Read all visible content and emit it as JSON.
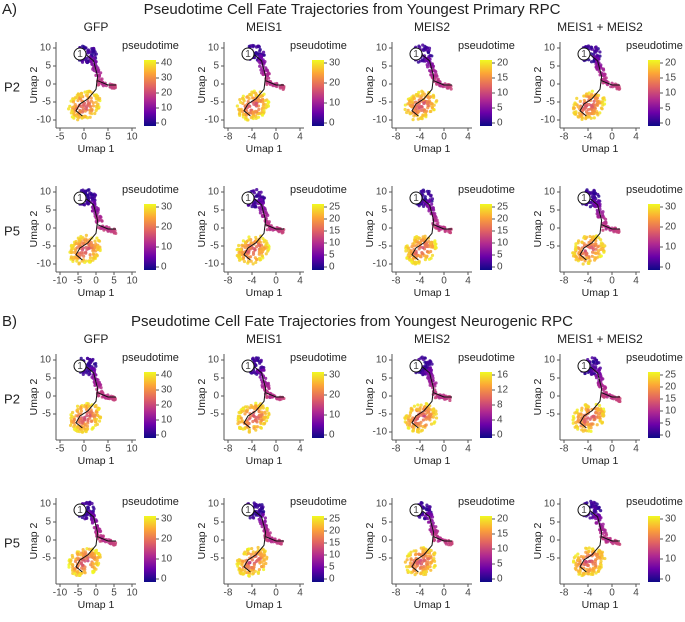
{
  "columns": [
    "GFP",
    "MEIS1",
    "MEIS2",
    "MEIS1 + MEIS2"
  ],
  "x_axis_label": "Umap 1",
  "y_axis_label": "Umap 2",
  "legend_title": "pseudotime",
  "root_label": "1",
  "sections": [
    {
      "label": "A)",
      "title": "Pseudotime Cell Fate Trajectories from Youngest Primary RPC",
      "rows": [
        {
          "label": "P2",
          "panels": [
            {
              "x_ticks": [
                -5,
                0,
                5,
                10
              ],
              "y_ticks": [
                10,
                5,
                0,
                -5,
                -10
              ],
              "colorbar_ticks": [
                40,
                30,
                20,
                10,
                0
              ]
            },
            {
              "x_ticks": [
                -8,
                -4,
                0,
                4
              ],
              "y_ticks": [
                10,
                5,
                0,
                -5,
                -10
              ],
              "colorbar_ticks": [
                30,
                20,
                10,
                0
              ]
            },
            {
              "x_ticks": [
                -8,
                -4,
                0,
                4
              ],
              "y_ticks": [
                10,
                5,
                0,
                -5,
                -10
              ],
              "colorbar_ticks": [
                20,
                15,
                10,
                5,
                0
              ]
            },
            {
              "x_ticks": [
                -8,
                -4,
                0,
                4
              ],
              "y_ticks": [
                10,
                5,
                0,
                -5,
                -10
              ],
              "colorbar_ticks": [
                20,
                15,
                10,
                5,
                0
              ]
            }
          ]
        },
        {
          "label": "P5",
          "panels": [
            {
              "x_ticks": [
                -10,
                -5,
                0,
                5,
                10
              ],
              "y_ticks": [
                10,
                5,
                0,
                -5,
                -10
              ],
              "colorbar_ticks": [
                30,
                20,
                10,
                0
              ]
            },
            {
              "x_ticks": [
                -8,
                -4,
                0,
                4
              ],
              "y_ticks": [
                10,
                5,
                0,
                -5,
                -10
              ],
              "colorbar_ticks": [
                25,
                20,
                15,
                10,
                5,
                0
              ]
            },
            {
              "x_ticks": [
                -8,
                -4,
                0,
                4
              ],
              "y_ticks": [
                10,
                5,
                0,
                -5,
                -10
              ],
              "colorbar_ticks": [
                25,
                20,
                15,
                10,
                5,
                0
              ]
            },
            {
              "x_ticks": [
                -8,
                -4,
                0,
                4
              ],
              "y_ticks": [
                10,
                5,
                0,
                -5
              ],
              "colorbar_ticks": [
                30,
                20,
                10,
                0
              ]
            }
          ]
        }
      ]
    },
    {
      "label": "B)",
      "title": "Pseudotime Cell Fate Trajectories from Youngest Neurogenic RPC",
      "rows": [
        {
          "label": "P2",
          "panels": [
            {
              "x_ticks": [
                -5,
                0,
                5,
                10
              ],
              "y_ticks": [
                10,
                5,
                0,
                -5
              ],
              "colorbar_ticks": [
                40,
                30,
                20,
                10,
                0
              ]
            },
            {
              "x_ticks": [
                -8,
                -4,
                0,
                4
              ],
              "y_ticks": [
                10,
                5,
                0,
                -5
              ],
              "colorbar_ticks": [
                30,
                20,
                10,
                0
              ]
            },
            {
              "x_ticks": [
                -8,
                -4,
                0,
                4
              ],
              "y_ticks": [
                10,
                5,
                0,
                -5,
                -10
              ],
              "colorbar_ticks": [
                16,
                12,
                8,
                4,
                0
              ]
            },
            {
              "x_ticks": [
                -8,
                -4,
                0,
                4
              ],
              "y_ticks": [
                10,
                5,
                0,
                -5
              ],
              "colorbar_ticks": [
                25,
                20,
                15,
                10,
                5,
                0
              ]
            }
          ]
        },
        {
          "label": "P5",
          "panels": [
            {
              "x_ticks": [
                -10,
                -5,
                0,
                5,
                10
              ],
              "y_ticks": [
                10,
                5,
                0,
                -5
              ],
              "colorbar_ticks": [
                30,
                20,
                10,
                0
              ]
            },
            {
              "x_ticks": [
                -8,
                -4,
                0,
                4
              ],
              "y_ticks": [
                10,
                5,
                0,
                -5
              ],
              "colorbar_ticks": [
                25,
                20,
                15,
                10,
                5,
                0
              ]
            },
            {
              "x_ticks": [
                -8,
                -4,
                0,
                4
              ],
              "y_ticks": [
                10,
                5,
                0,
                -5
              ],
              "colorbar_ticks": [
                20,
                15,
                10,
                5,
                0
              ]
            },
            {
              "x_ticks": [
                -8,
                -4,
                0,
                4
              ],
              "y_ticks": [
                10,
                5,
                0,
                -5
              ],
              "colorbar_ticks": [
                30,
                20,
                10,
                0
              ]
            }
          ]
        }
      ]
    }
  ]
}
